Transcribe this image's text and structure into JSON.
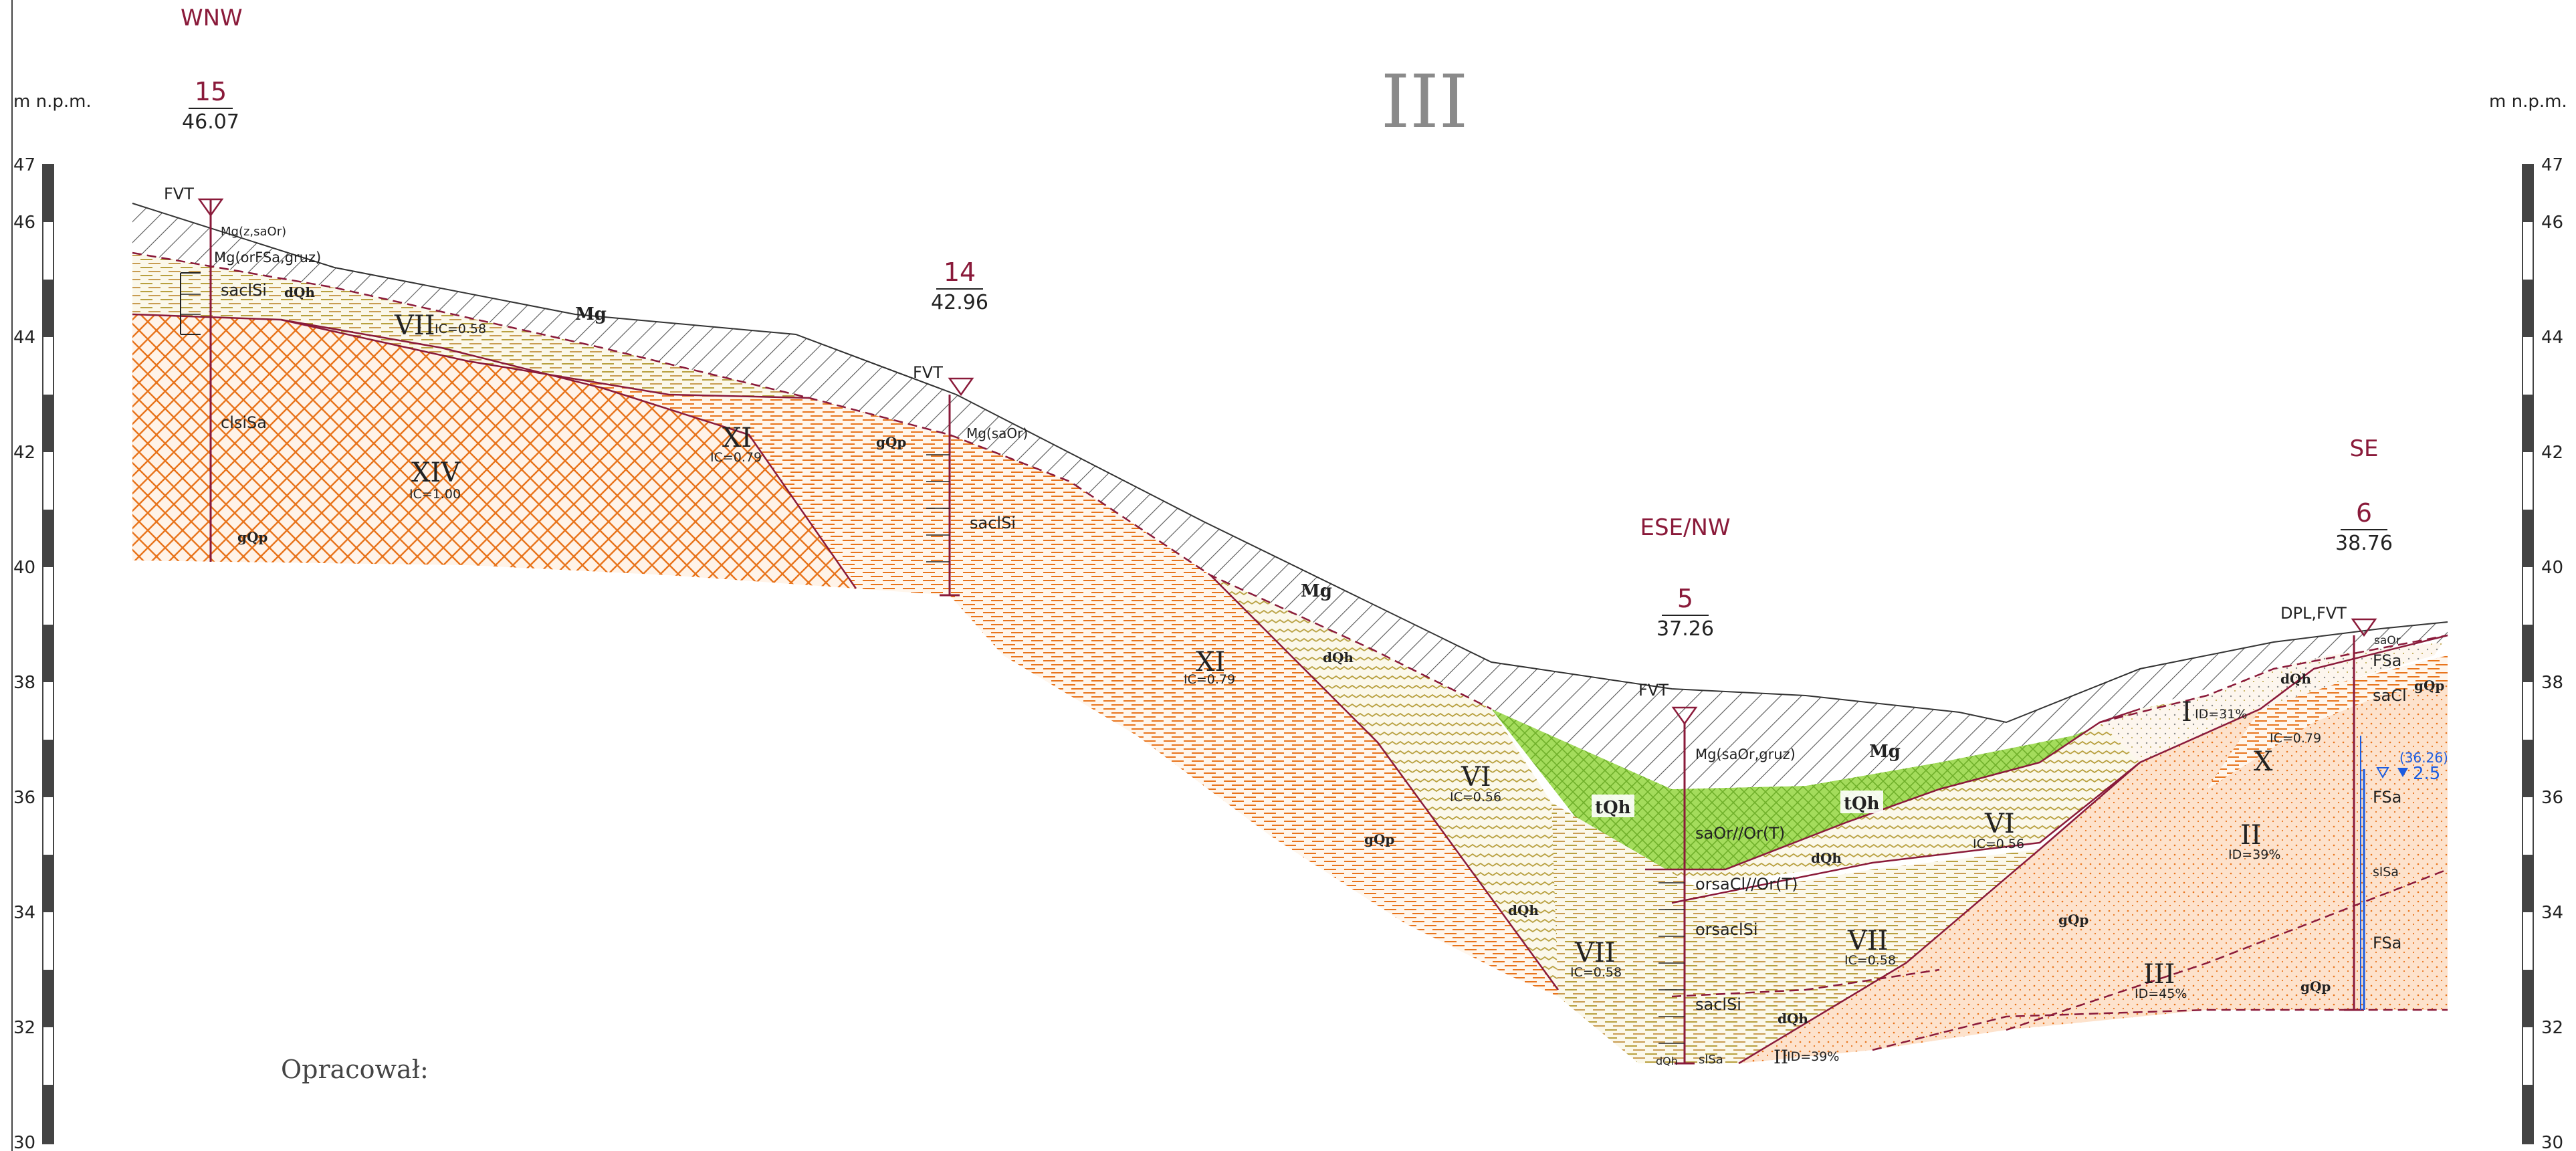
{
  "title": "III",
  "y_unit_left": "m  n.p.m.",
  "y_unit_right": "m  n.p.m.",
  "y_ticks": [
    "47",
    "46",
    "44",
    "42",
    "40",
    "38",
    "36",
    "34",
    "32",
    "30"
  ],
  "colors": {
    "border": "#8a1a3a",
    "orange": "#e8741c",
    "olive": "#b8a040",
    "green": "#8fd14f",
    "water": "#1c5ce0",
    "hatch": "#555555"
  },
  "directions": {
    "left": "WNW",
    "middle": "ESE/NW",
    "right": "SE"
  },
  "boreholes": [
    {
      "number": "15",
      "elevation": "46.07",
      "tests": "FVT"
    },
    {
      "number": "14",
      "elevation": "42.96",
      "tests": "FVT"
    },
    {
      "number": "5",
      "elevation": "37.26",
      "tests": "FVT"
    },
    {
      "number": "6",
      "elevation": "38.76",
      "tests": "DPL,FVT"
    }
  ],
  "soil_labels": {
    "b15_top1": "Mg(z,saOr)",
    "b15_top2": "Mg(orFSa,gruz)",
    "b15_saclsi": "saclSi",
    "b15_clsisa": "clsiSa",
    "b14_mg": "Mg(saOr)",
    "b14_saclsi": "saclSi",
    "b5_mg": "Mg(saOr,gruz)",
    "b5_saor": "saOr//Or(T)",
    "b5_orsacl": "orsaCl//Or(T)",
    "b5_orsaclsi": "orsaclSi",
    "b5_saclsi": "saclSi",
    "b5_slsa": "slSa",
    "b5_bottom": "dQh",
    "b6_saor": "saOr",
    "b6_fsa1": "FSa",
    "b6_sacl": "saCl",
    "b6_fsa2": "FSa",
    "b6_slsa": "slSa",
    "b6_fsa3": "FSa"
  },
  "layers": [
    {
      "roman": "XIV",
      "index": "IC=1.00"
    },
    {
      "roman": "XI",
      "index": "IC=0.79"
    },
    {
      "roman": "VII",
      "index": "IC=0.58"
    },
    {
      "roman": "XI",
      "index": "IC=0.79"
    },
    {
      "roman": "VI",
      "index": "IC=0.56"
    },
    {
      "roman": "VII",
      "index": "IC=0.58"
    },
    {
      "roman": "VII",
      "index": "IC=0.58"
    },
    {
      "roman": "VI",
      "index": "IC=0.56"
    },
    {
      "roman": "I",
      "index": "ID=31%"
    },
    {
      "roman": "X",
      "index": "IC=0.79"
    },
    {
      "roman": "II",
      "index": "ID=39%"
    },
    {
      "roman": "III",
      "index": "ID=45%"
    },
    {
      "roman": "II",
      "index": "ID=39%"
    }
  ],
  "units": {
    "mg": "Mg",
    "tqh": "tQh",
    "dqh": "dQh",
    "gqp": "gQp"
  },
  "water": {
    "level_paren": "(36.26)",
    "depth": "2.5"
  },
  "footer": {
    "prepared_by": "Opracował:"
  }
}
